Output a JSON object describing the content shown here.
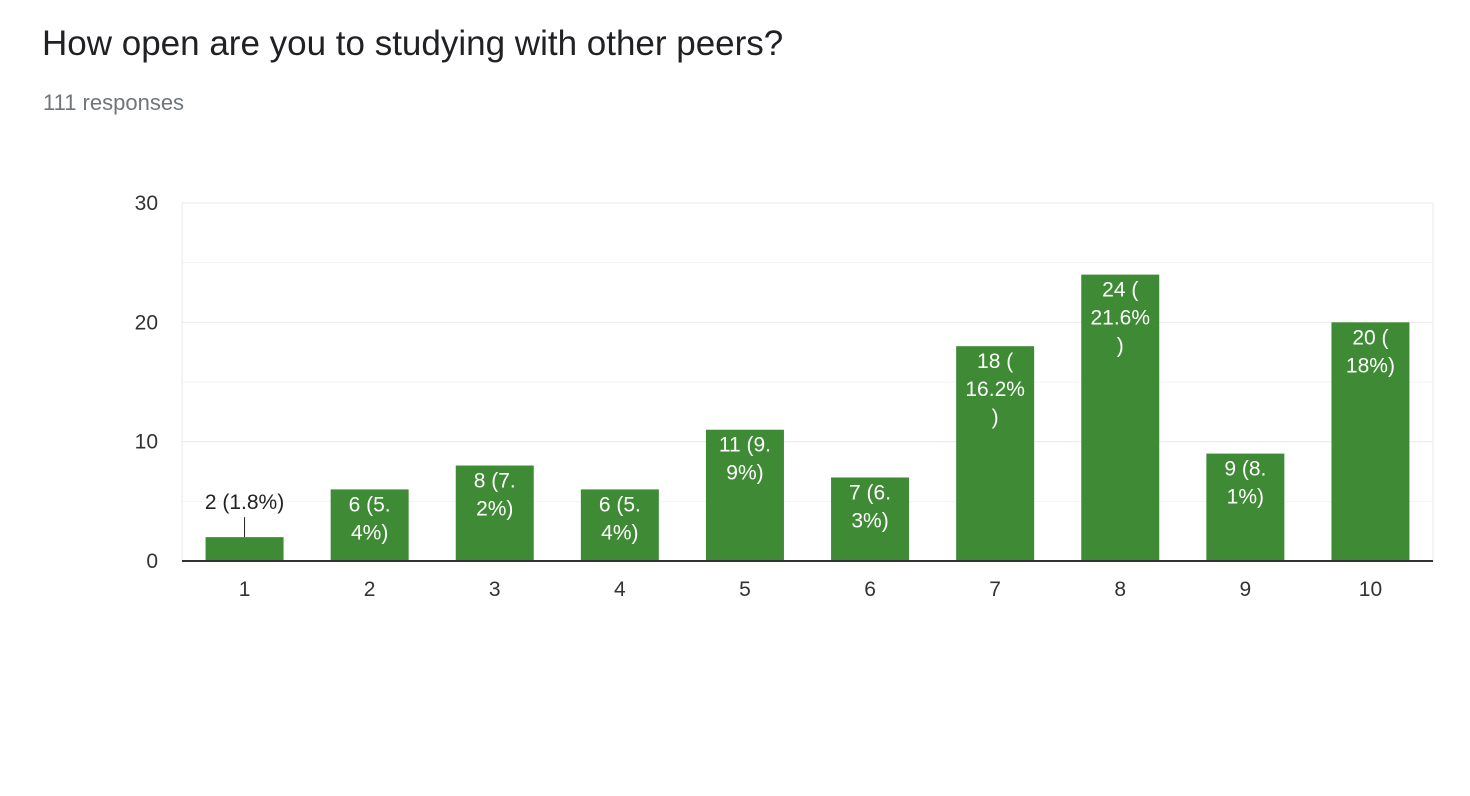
{
  "header": {
    "title": "How open are you to studying with other peers?",
    "responses": "111 responses"
  },
  "colors": {
    "bar": "#3f8b35",
    "grid_major": "#e9e9e9",
    "grid_minor": "#f3f3f3",
    "axis": "#333333",
    "label_inside": "#ffffff",
    "label_outside": "#222222"
  },
  "chart_data": {
    "type": "bar",
    "categories": [
      "1",
      "2",
      "3",
      "4",
      "5",
      "6",
      "7",
      "8",
      "9",
      "10"
    ],
    "values": [
      2,
      6,
      8,
      6,
      11,
      7,
      18,
      24,
      9,
      20
    ],
    "data_labels": [
      [
        "2 (1.8%)"
      ],
      [
        "6 (5.",
        "4%)"
      ],
      [
        "8 (7.",
        "2%)"
      ],
      [
        "6 (5.",
        "4%)"
      ],
      [
        "11 (9.",
        "9%)"
      ],
      [
        "7 (6.",
        "3%)"
      ],
      [
        "18 (",
        "16.2%",
        ")"
      ],
      [
        "24 (",
        "21.6%",
        ")"
      ],
      [
        "9 (8.",
        "1%)"
      ],
      [
        "20 (",
        "18%)"
      ]
    ],
    "ylim": [
      0,
      30
    ],
    "yticks": [
      "0",
      "10",
      "20",
      "30"
    ],
    "grid": true
  }
}
